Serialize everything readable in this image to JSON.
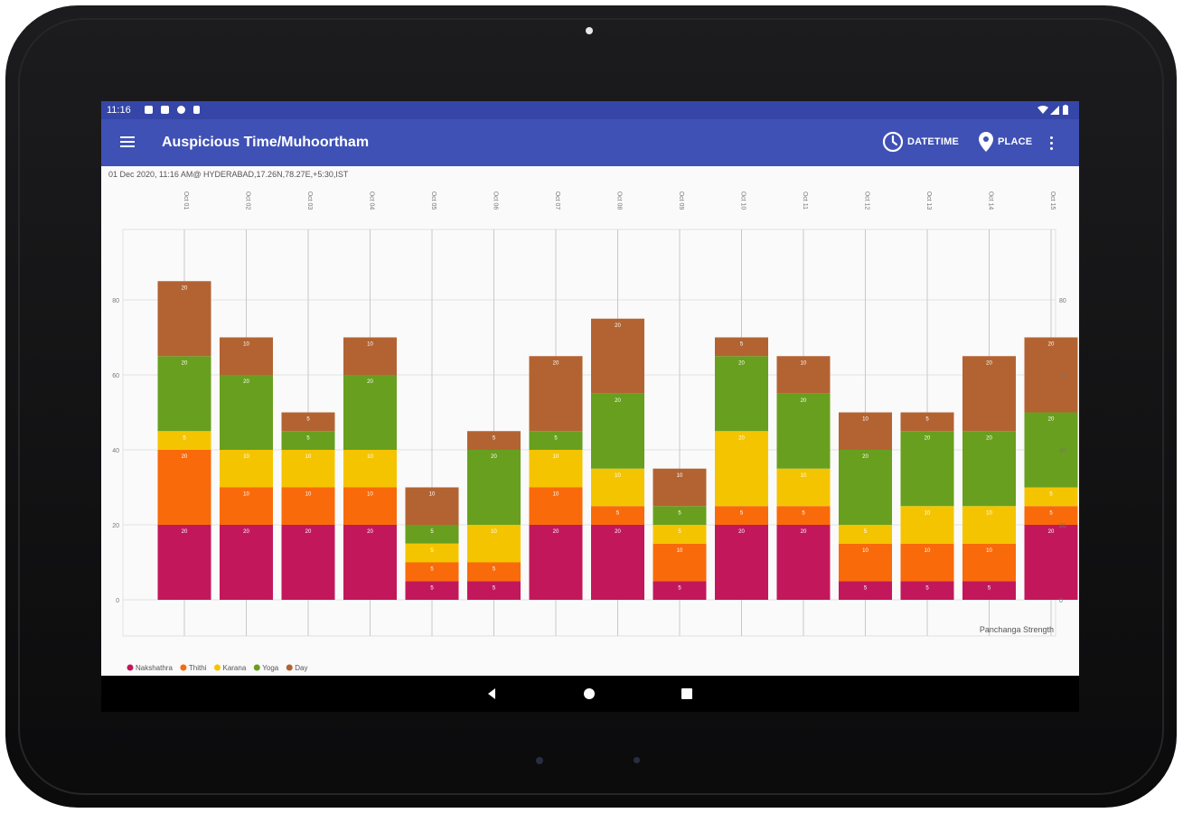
{
  "device": {
    "type": "tablet"
  },
  "status_bar": {
    "time": "11:16"
  },
  "app_bar": {
    "title": "Auspicious Time/Muhoortham",
    "actions": [
      {
        "label": "DATETIME",
        "icon": "clock-icon"
      },
      {
        "label": "PLACE",
        "icon": "location-pin-icon"
      }
    ],
    "overflow_icon": "more-vert-icon"
  },
  "info_line": "01 Dec 2020, 11:16 AM@ HYDERABAD,17.26N,78.27E,+5:30,IST",
  "chart_data": {
    "type": "bar",
    "stacked": true,
    "categories": [
      "Oct 01",
      "Oct 02",
      "Oct 03",
      "Oct 04",
      "Oct 05",
      "Oct 06",
      "Oct 07",
      "Oct 08",
      "Oct 09",
      "Oct 10",
      "Oct 11",
      "Oct 12",
      "Oct 13",
      "Oct 14",
      "Oct 15"
    ],
    "series": [
      {
        "name": "Nakshathra",
        "color": "#c2185b",
        "values": [
          20,
          20,
          20,
          20,
          5,
          5,
          20,
          20,
          5,
          20,
          20,
          5,
          5,
          5,
          20
        ]
      },
      {
        "name": "Thithi",
        "color": "#f96a0a",
        "values": [
          20,
          10,
          10,
          10,
          5,
          5,
          10,
          5,
          10,
          5,
          5,
          10,
          10,
          10,
          5
        ]
      },
      {
        "name": "Karana",
        "color": "#f5c400",
        "values": [
          5,
          10,
          10,
          10,
          5,
          10,
          10,
          10,
          5,
          20,
          10,
          5,
          10,
          10,
          5
        ]
      },
      {
        "name": "Yoga",
        "color": "#689f1e",
        "values": [
          20,
          20,
          5,
          20,
          5,
          20,
          5,
          20,
          5,
          20,
          20,
          20,
          20,
          20,
          20
        ]
      },
      {
        "name": "Day",
        "color": "#b36332",
        "values": [
          20,
          10,
          5,
          10,
          10,
          5,
          20,
          20,
          10,
          5,
          10,
          10,
          5,
          20,
          20
        ]
      }
    ],
    "y_ticks": [
      0,
      20,
      40,
      60,
      80
    ],
    "ylim": [
      0,
      90
    ],
    "axis_label": "Panchanga Strength",
    "grid": true,
    "legend_position": "bottom-left"
  },
  "nav_bar": {
    "buttons": [
      "back",
      "home",
      "recents"
    ]
  }
}
